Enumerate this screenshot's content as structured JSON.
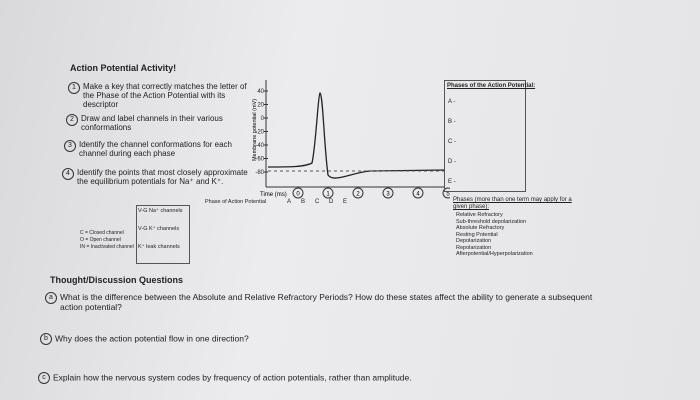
{
  "header": {
    "title": "Action Potential Activity!"
  },
  "steps": [
    {
      "number": "1",
      "text": "Make a key that correctly matches the letter of the Phase of the Action Potential with its descriptor"
    },
    {
      "number": "2",
      "text": "Draw and label channels in their various conformations"
    },
    {
      "number": "3",
      "text": "Identify the channel conformations for each channel during each phase"
    },
    {
      "number": "4",
      "text": "Identify the points that most closely approximate the equilibrium potentials for Na⁺ and K⁺."
    }
  ],
  "graph": {
    "y_label": "Membrane potential (mV)",
    "y_ticks": [
      "40",
      "20",
      "0",
      "-20",
      "-40",
      "-60",
      "-80"
    ],
    "x_label": "Time (ms)",
    "time_marks": [
      "0",
      "1",
      "2",
      "3",
      "4",
      "5"
    ],
    "phase_row_label": "Phase of Action Potential",
    "phases": [
      "A",
      "B",
      "C",
      "D",
      "E"
    ]
  },
  "channels": [
    "V-G Na⁺ channels",
    "V-G K⁺ channels",
    "K⁺ leak channels"
  ],
  "legend": [
    "C = Closed channel",
    "O = Open channel",
    "IN = Inactivated channel"
  ],
  "phases_box": {
    "title": "Phases of the Action Potential:",
    "items": [
      "A -",
      "B -",
      "C -",
      "D -",
      "E -"
    ]
  },
  "terms": {
    "title": "Phases (more than one term may apply for a given phase):",
    "items": [
      "Relative Refractory",
      "Sub-threshold depolarization",
      "Absolute Refractory",
      "Resting Potential",
      "Depolarization",
      "Repolarization",
      "Afterpotential/Hyperpolarization"
    ]
  },
  "discussion": {
    "title": "Thought/Discussion Questions",
    "questions": [
      {
        "letter": "a",
        "text": "What is the difference between the Absolute and Relative Refractory Periods? How do these states affect the ability to generate a subsequent action potential?"
      },
      {
        "letter": "b",
        "text": "Why does the action potential flow in one direction?"
      },
      {
        "letter": "c",
        "text": "Explain how the nervous system codes by frequency of action potentials, rather than amplitude."
      }
    ]
  }
}
